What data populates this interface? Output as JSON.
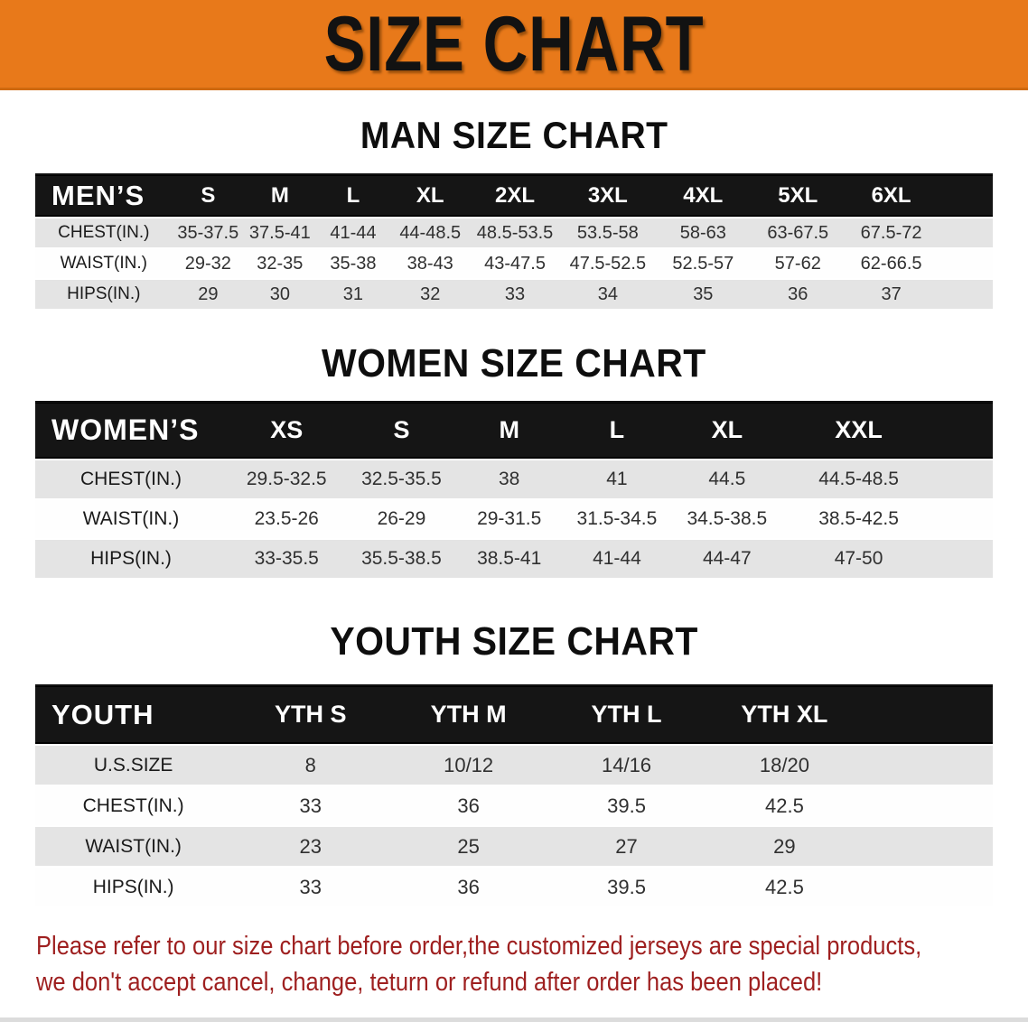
{
  "banner": {
    "title": "SIZE CHART",
    "bg_color": "#E8791A",
    "text_color": "#121212"
  },
  "sections": {
    "men": {
      "title": "MAN SIZE CHART",
      "table": {
        "header_label": "MEN’S",
        "columns": [
          "S",
          "M",
          "L",
          "XL",
          "2XL",
          "3XL",
          "4XL",
          "5XL",
          "6XL"
        ],
        "rows": [
          {
            "label": "CHEST(IN.)",
            "values": [
              "35-37.5",
              "37.5-41",
              "41-44",
              "44-48.5",
              "48.5-53.5",
              "53.5-58",
              "58-63",
              "63-67.5",
              "67.5-72"
            ]
          },
          {
            "label": "WAIST(IN.)",
            "values": [
              "29-32",
              "32-35",
              "35-38",
              "38-43",
              "43-47.5",
              "47.5-52.5",
              "52.5-57",
              "57-62",
              "62-66.5"
            ]
          },
          {
            "label": "HIPS(IN.)",
            "values": [
              "29",
              "30",
              "31",
              "32",
              "33",
              "34",
              "35",
              "36",
              "37"
            ]
          }
        ]
      }
    },
    "women": {
      "title": "WOMEN SIZE CHART",
      "table": {
        "header_label": "WOMEN’S",
        "columns": [
          "XS",
          "S",
          "M",
          "L",
          "XL",
          "XXL"
        ],
        "rows": [
          {
            "label": "CHEST(IN.)",
            "values": [
              "29.5-32.5",
              "32.5-35.5",
              "38",
              "41",
              "44.5",
              "44.5-48.5"
            ]
          },
          {
            "label": "WAIST(IN.)",
            "values": [
              "23.5-26",
              "26-29",
              "29-31.5",
              "31.5-34.5",
              "34.5-38.5",
              "38.5-42.5"
            ]
          },
          {
            "label": "HIPS(IN.)",
            "values": [
              "33-35.5",
              "35.5-38.5",
              "38.5-41",
              "41-44",
              "44-47",
              "47-50"
            ]
          }
        ]
      }
    },
    "youth": {
      "title": "YOUTH SIZE CHART",
      "table": {
        "header_label": "YOUTH",
        "columns": [
          "YTH S",
          "YTH M",
          "YTH L",
          "YTH XL"
        ],
        "rows": [
          {
            "label": "U.S.SIZE",
            "values": [
              "8",
              "10/12",
              "14/16",
              "18/20"
            ]
          },
          {
            "label": "CHEST(IN.)",
            "values": [
              "33",
              "36",
              "39.5",
              "42.5"
            ]
          },
          {
            "label": "WAIST(IN.)",
            "values": [
              "23",
              "25",
              "27",
              "29"
            ]
          },
          {
            "label": "HIPS(IN.)",
            "values": [
              "33",
              "36",
              "39.5",
              "42.5"
            ]
          }
        ]
      }
    }
  },
  "disclaimer": {
    "line1": "Please refer to our size chart before order,the customized jerseys are special products,",
    "line2": "we don't accept cancel, change, teturn or refund after order has been placed!",
    "color": "#9E1F1F"
  },
  "colors": {
    "banner_orange": "#E8791A",
    "table_header_black": "#151515",
    "row_gray": "#E4E4E4",
    "disclaimer_red": "#9E1F1F"
  }
}
